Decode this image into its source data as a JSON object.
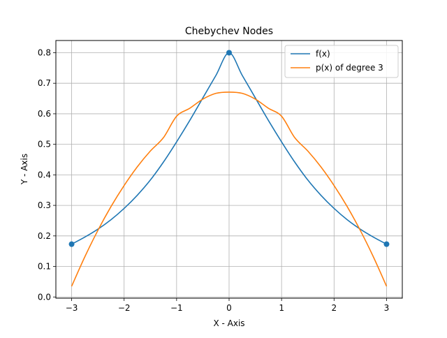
{
  "chart_data": {
    "type": "line",
    "title": "Chebychev Nodes",
    "xlabel": "X - Axis",
    "ylabel": "Y - Axis",
    "xlim": [
      -3.3,
      3.3
    ],
    "ylim": [
      -0.004,
      0.84
    ],
    "xticks": [
      -3,
      -2,
      -1,
      0,
      1,
      2,
      3
    ],
    "xtick_labels": [
      "−3",
      "−2",
      "−1",
      "0",
      "1",
      "2",
      "3"
    ],
    "yticks": [
      0.0,
      0.1,
      0.2,
      0.3,
      0.4,
      0.5,
      0.6,
      0.7,
      0.8
    ],
    "ytick_labels": [
      "0.0",
      "0.1",
      "0.2",
      "0.3",
      "0.4",
      "0.5",
      "0.6",
      "0.7",
      "0.8"
    ],
    "grid": true,
    "legend_position": "top-right",
    "series": [
      {
        "name": "f(x)",
        "color": "#1f77b4",
        "x": [
          -3.0,
          -2.75,
          -2.5,
          -2.25,
          -2.0,
          -1.75,
          -1.5,
          -1.25,
          -1.0,
          -0.75,
          -0.5,
          -0.25,
          0.0,
          0.25,
          0.5,
          0.75,
          1.0,
          1.25,
          1.5,
          1.75,
          2.0,
          2.25,
          2.5,
          2.75,
          3.0
        ],
        "y": [
          0.173,
          0.196,
          0.222,
          0.253,
          0.29,
          0.333,
          0.383,
          0.442,
          0.508,
          0.578,
          0.652,
          0.726,
          0.8,
          0.726,
          0.652,
          0.578,
          0.508,
          0.442,
          0.383,
          0.333,
          0.29,
          0.253,
          0.222,
          0.196,
          0.173
        ]
      },
      {
        "name": "p(x) of degree 3",
        "color": "#ff7f0e",
        "x": [
          -3.0,
          -2.75,
          -2.5,
          -2.25,
          -2.0,
          -1.75,
          -1.5,
          -1.25,
          -1.0,
          -0.75,
          -0.5,
          -0.25,
          0.0,
          0.25,
          0.5,
          0.75,
          1.0,
          1.25,
          1.5,
          1.75,
          2.0,
          2.25,
          2.5,
          2.75,
          3.0
        ],
        "y": [
          0.035,
          0.131,
          0.218,
          0.296,
          0.365,
          0.426,
          0.478,
          0.522,
          0.592,
          0.618,
          0.648,
          0.667,
          0.671,
          0.667,
          0.648,
          0.618,
          0.592,
          0.522,
          0.478,
          0.426,
          0.365,
          0.296,
          0.218,
          0.131,
          0.035
        ]
      }
    ],
    "nodes": {
      "color": "#1f77b4",
      "x": [
        -3.0,
        0.0,
        3.0
      ],
      "y": [
        0.173,
        0.8,
        0.173
      ]
    }
  }
}
